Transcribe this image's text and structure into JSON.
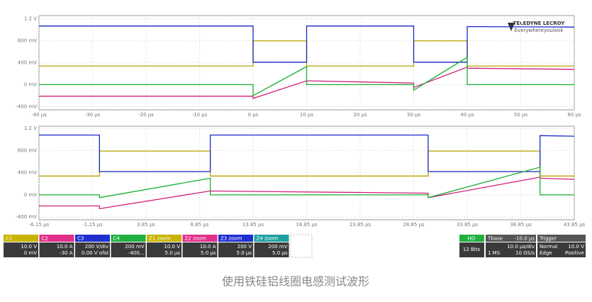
{
  "chart_data": [
    {
      "type": "line",
      "x": [
        -40,
        0,
        0,
        10,
        10,
        30,
        30,
        40,
        40,
        60
      ],
      "xlim": [
        -40,
        60
      ],
      "xticks": [
        {
          "value": -40,
          "label": "-40 µs"
        },
        {
          "value": -30,
          "label": "-30 µs"
        },
        {
          "value": -20,
          "label": "-20 µs"
        },
        {
          "value": -10,
          "label": "-10 µs"
        },
        {
          "value": 0,
          "label": "0 µs"
        },
        {
          "value": 10,
          "label": "10 µs"
        },
        {
          "value": 20,
          "label": "20 µs"
        },
        {
          "value": 30,
          "label": "30 µs"
        },
        {
          "value": 40,
          "label": "40 µs"
        },
        {
          "value": 50,
          "label": "50 µs"
        },
        {
          "value": 60,
          "label": "60 µs"
        }
      ],
      "ylim": [
        -0.46,
        1.26
      ],
      "yticks": [
        {
          "value": 1.2,
          "label": "1.2 V"
        },
        {
          "value": 0.8,
          "label": "800 mV"
        },
        {
          "value": 0.4,
          "label": "400 mV"
        },
        {
          "value": 0,
          "label": "0 mV"
        },
        {
          "value": -0.4,
          "label": "-400 mV"
        }
      ],
      "grid": true,
      "series": [
        {
          "name": "C1",
          "color": "#b8a400",
          "values": [
            0.34,
            0.34,
            0.8,
            0.8,
            0.34,
            0.34,
            0.8,
            0.8,
            0.34,
            0.34
          ]
        },
        {
          "name": "C2",
          "color": "#d0207a",
          "values": [
            -0.21,
            -0.21,
            -0.25,
            0.07,
            0.07,
            0.03,
            -0.05,
            0.32,
            0.3,
            0.28
          ]
        },
        {
          "name": "C3",
          "color": "#1a28c8",
          "values": [
            1.07,
            1.07,
            0.41,
            0.41,
            1.07,
            1.07,
            0.41,
            0.41,
            1.06,
            1.05
          ]
        },
        {
          "name": "C4",
          "color": "#18b030",
          "values": [
            0,
            0,
            -0.2,
            0.33,
            0,
            0,
            -0.1,
            0.5,
            0,
            0
          ]
        }
      ]
    },
    {
      "type": "line",
      "x": [
        -6.15,
        -0.5,
        -0.5,
        9.85,
        9.85,
        30.2,
        30.2,
        40.65,
        40.65,
        43.85
      ],
      "xlim": [
        -6.15,
        43.85
      ],
      "xticks": [
        {
          "value": -6.15,
          "label": "-6.15 µs"
        },
        {
          "value": -1.15,
          "label": "-1.15 µs"
        },
        {
          "value": 3.85,
          "label": "3.85 µs"
        },
        {
          "value": 8.85,
          "label": "8.85 µs"
        },
        {
          "value": 13.85,
          "label": "13.85 µs"
        },
        {
          "value": 18.85,
          "label": "18.85 µs"
        },
        {
          "value": 23.85,
          "label": "23.85 µs"
        },
        {
          "value": 28.85,
          "label": "28.85 µs"
        },
        {
          "value": 33.85,
          "label": "33.85 µs"
        },
        {
          "value": 38.85,
          "label": "38.85 µs"
        },
        {
          "value": 43.85,
          "label": "43.85 µs"
        }
      ],
      "ylim": [
        -0.45,
        1.24
      ],
      "yticks": [
        {
          "value": 1.2,
          "label": "1.2 V"
        },
        {
          "value": 0.8,
          "label": "800 mV"
        },
        {
          "value": 0.4,
          "label": "400 mV"
        },
        {
          "value": 0,
          "label": "0 mV"
        },
        {
          "value": -0.4,
          "label": "-400 mV"
        }
      ],
      "grid": true,
      "series": [
        {
          "name": "Z1 zoom",
          "color": "#b8a400",
          "values": [
            0.34,
            0.34,
            0.79,
            0.79,
            0.34,
            0.34,
            0.79,
            0.79,
            0.34,
            0.34
          ]
        },
        {
          "name": "Z2 zoom",
          "color": "#d0207a",
          "values": [
            -0.2,
            -0.2,
            -0.25,
            0.07,
            0.07,
            0.03,
            -0.05,
            0.32,
            0.3,
            0.28
          ]
        },
        {
          "name": "Z3 zoom",
          "color": "#1a28c8",
          "values": [
            1.08,
            1.08,
            0.42,
            0.42,
            1.08,
            1.08,
            0.42,
            0.42,
            1.07,
            1.06
          ]
        },
        {
          "name": "Z4 zoom",
          "color": "#18b030",
          "values": [
            0,
            0,
            -0.05,
            0.3,
            0,
            0,
            -0.05,
            0.5,
            0,
            0
          ]
        }
      ]
    }
  ],
  "channels": [
    {
      "name": "C1",
      "color": "#c8b400",
      "lines": [
        "10.0 V",
        "0 mV"
      ]
    },
    {
      "name": "C2",
      "color": "#e0308a",
      "lines": [
        "10.0 A",
        "-30 A"
      ]
    },
    {
      "name": "C3",
      "color": "#2030d0",
      "lines": [
        "200 V/div",
        "0.00 V ofst"
      ]
    },
    {
      "name": "C4",
      "color": "#20b040",
      "lines": [
        "200 mV",
        "-400..."
      ]
    },
    {
      "name": "Z1 zoom",
      "color": "#c8b400",
      "lines": [
        "10.0 V",
        "5.0 µs"
      ]
    },
    {
      "name": "Z2 zoom",
      "color": "#e0308a",
      "lines": [
        "10.0 A",
        "5.0 µs"
      ]
    },
    {
      "name": "Z3 zoom",
      "color": "#2030d0",
      "lines": [
        "200 V",
        "5.0 µs"
      ]
    },
    {
      "name": "Z4 zoom",
      "color": "#20a0a0",
      "lines": [
        "200 mV",
        "5.0 µs"
      ]
    }
  ],
  "hd": {
    "label": "HD",
    "bits": "12 Bits"
  },
  "timebase": {
    "title": "Tbase",
    "offset": "-10.0 µs",
    "per_div": "10.0 µs/div",
    "samples": "1 MS",
    "rate": "10 GS/s"
  },
  "trigger": {
    "title": "Trigger",
    "mode": "Normal",
    "level": "10.0 V",
    "type": "Edge",
    "slope": "Positive"
  },
  "logo": {
    "brand": "TELEDYNE LECROY",
    "slogan": "Everywhereyoulook"
  },
  "caption": "使用铁硅铝线圈电感测试波形"
}
